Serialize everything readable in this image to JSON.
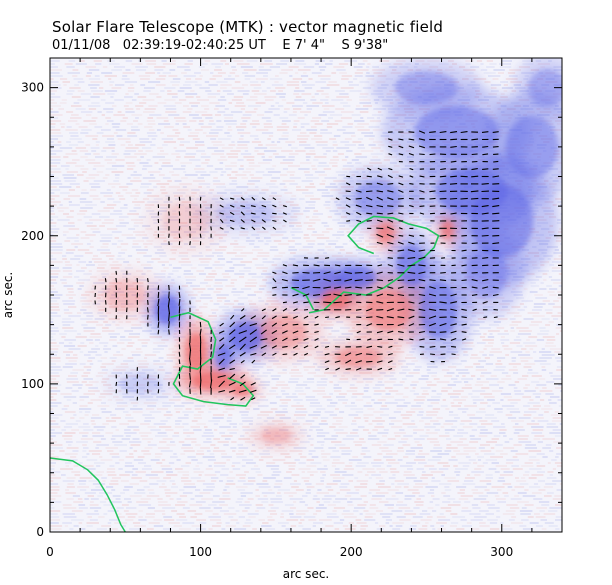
{
  "header": {
    "title": "Solar Flare Telescope (MTK) : vector magnetic field",
    "date": "01/11/08",
    "time_range": "02:39:19-02:40:25 UT",
    "position_ew": "E 7' 4\"",
    "position_ns": "S 9'38\""
  },
  "colors": {
    "positive_polarity": "#f06a6a",
    "negative_polarity": "#5a63e6",
    "neutral_line": "#22c55e",
    "transverse_vectors": "#000000",
    "limb_line": "#22c55e"
  },
  "chart_data": {
    "type": "heatmap",
    "title": "Solar Flare Telescope (MTK) : vector magnetic field",
    "xlabel": "arc sec.",
    "ylabel": "arc sec.",
    "xlim": [
      0,
      340
    ],
    "ylim": [
      0,
      320
    ],
    "xticks": [
      0,
      100,
      200,
      300
    ],
    "yticks": [
      0,
      100,
      200,
      300
    ],
    "legend": "none",
    "grid": false,
    "positive_regions": [
      {
        "cx": 97,
        "cy": 122,
        "rx": 10,
        "ry": 18,
        "strength": 0.9
      },
      {
        "cx": 108,
        "cy": 102,
        "rx": 20,
        "ry": 9,
        "strength": 0.95
      },
      {
        "cx": 128,
        "cy": 96,
        "rx": 10,
        "ry": 6,
        "strength": 0.8
      },
      {
        "cx": 155,
        "cy": 135,
        "rx": 22,
        "ry": 16,
        "strength": 0.5
      },
      {
        "cx": 190,
        "cy": 157,
        "rx": 13,
        "ry": 10,
        "strength": 0.95
      },
      {
        "cx": 225,
        "cy": 150,
        "rx": 22,
        "ry": 20,
        "strength": 0.7
      },
      {
        "cx": 205,
        "cy": 118,
        "rx": 22,
        "ry": 10,
        "strength": 0.6
      },
      {
        "cx": 223,
        "cy": 202,
        "rx": 8,
        "ry": 10,
        "strength": 0.8
      },
      {
        "cx": 264,
        "cy": 204,
        "rx": 6,
        "ry": 9,
        "strength": 0.85
      },
      {
        "cx": 150,
        "cy": 65,
        "rx": 15,
        "ry": 8,
        "strength": 0.4
      },
      {
        "cx": 50,
        "cy": 160,
        "rx": 20,
        "ry": 14,
        "strength": 0.35
      },
      {
        "cx": 90,
        "cy": 210,
        "rx": 22,
        "ry": 18,
        "strength": 0.25
      }
    ],
    "negative_regions": [
      {
        "cx": 78,
        "cy": 150,
        "rx": 12,
        "ry": 14,
        "strength": 0.9
      },
      {
        "cx": 130,
        "cy": 132,
        "rx": 16,
        "ry": 14,
        "strength": 0.95
      },
      {
        "cx": 115,
        "cy": 118,
        "rx": 8,
        "ry": 12,
        "strength": 0.8
      },
      {
        "cx": 178,
        "cy": 168,
        "rx": 26,
        "ry": 14,
        "strength": 0.8
      },
      {
        "cx": 204,
        "cy": 172,
        "rx": 18,
        "ry": 10,
        "strength": 0.85
      },
      {
        "cx": 240,
        "cy": 180,
        "rx": 14,
        "ry": 20,
        "strength": 0.8
      },
      {
        "cx": 258,
        "cy": 150,
        "rx": 18,
        "ry": 28,
        "strength": 0.75
      },
      {
        "cx": 218,
        "cy": 225,
        "rx": 22,
        "ry": 18,
        "strength": 0.6
      },
      {
        "cx": 280,
        "cy": 230,
        "rx": 34,
        "ry": 22,
        "strength": 0.75
      },
      {
        "cx": 300,
        "cy": 210,
        "rx": 30,
        "ry": 35,
        "strength": 0.7
      },
      {
        "cx": 270,
        "cy": 270,
        "rx": 40,
        "ry": 25,
        "strength": 0.65
      },
      {
        "cx": 320,
        "cy": 260,
        "rx": 25,
        "ry": 30,
        "strength": 0.6
      },
      {
        "cx": 250,
        "cy": 300,
        "rx": 30,
        "ry": 16,
        "strength": 0.5
      },
      {
        "cx": 330,
        "cy": 300,
        "rx": 18,
        "ry": 18,
        "strength": 0.5
      },
      {
        "cx": 290,
        "cy": 175,
        "rx": 20,
        "ry": 25,
        "strength": 0.55
      },
      {
        "cx": 130,
        "cy": 215,
        "rx": 28,
        "ry": 12,
        "strength": 0.3
      },
      {
        "cx": 60,
        "cy": 100,
        "rx": 20,
        "ry": 10,
        "strength": 0.25
      }
    ],
    "neutral_lines": [
      [
        [
          80,
          145
        ],
        [
          92,
          148
        ],
        [
          105,
          142
        ],
        [
          110,
          130
        ],
        [
          108,
          118
        ],
        [
          98,
          110
        ],
        [
          88,
          112
        ],
        [
          82,
          100
        ],
        [
          88,
          92
        ],
        [
          102,
          88
        ],
        [
          118,
          86
        ],
        [
          130,
          85
        ],
        [
          135,
          92
        ],
        [
          128,
          100
        ],
        [
          118,
          104
        ]
      ],
      [
        [
          172,
          148
        ],
        [
          182,
          150
        ],
        [
          195,
          162
        ],
        [
          210,
          160
        ],
        [
          222,
          165
        ],
        [
          232,
          172
        ],
        [
          240,
          180
        ],
        [
          248,
          185
        ],
        [
          255,
          192
        ],
        [
          258,
          200
        ],
        [
          250,
          205
        ],
        [
          238,
          208
        ],
        [
          228,
          212
        ],
        [
          215,
          213
        ],
        [
          205,
          208
        ],
        [
          198,
          200
        ],
        [
          205,
          192
        ],
        [
          215,
          188
        ]
      ],
      [
        [
          160,
          165
        ],
        [
          170,
          160
        ],
        [
          175,
          150
        ]
      ]
    ],
    "limb_line": [
      [
        0,
        50
      ],
      [
        15,
        48
      ],
      [
        25,
        42
      ],
      [
        32,
        35
      ],
      [
        38,
        25
      ],
      [
        43,
        15
      ],
      [
        47,
        5
      ],
      [
        50,
        0
      ]
    ],
    "vector_region": {
      "xmin": 30,
      "xmax": 300,
      "ymin": 80,
      "ymax": 270
    }
  }
}
